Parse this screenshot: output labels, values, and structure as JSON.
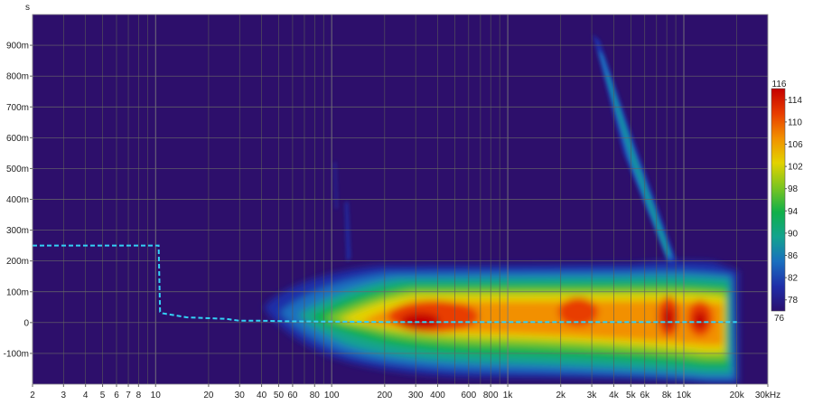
{
  "chart_data": {
    "type": "heatmap",
    "title": "",
    "y_unit_label": "s",
    "x_scale": "log",
    "xlim": [
      2,
      30000
    ],
    "ylim": [
      -0.2,
      1.0
    ],
    "x_ticks": [
      {
        "v": 2,
        "label": "2"
      },
      {
        "v": 3,
        "label": "3"
      },
      {
        "v": 4,
        "label": "4"
      },
      {
        "v": 5,
        "label": "5"
      },
      {
        "v": 6,
        "label": "6"
      },
      {
        "v": 7,
        "label": "7"
      },
      {
        "v": 8,
        "label": "8"
      },
      {
        "v": 10,
        "label": "10"
      },
      {
        "v": 20,
        "label": "20"
      },
      {
        "v": 30,
        "label": "30"
      },
      {
        "v": 40,
        "label": "40"
      },
      {
        "v": 50,
        "label": "50"
      },
      {
        "v": 60,
        "label": "60"
      },
      {
        "v": 80,
        "label": "80"
      },
      {
        "v": 100,
        "label": "100"
      },
      {
        "v": 200,
        "label": "200"
      },
      {
        "v": 300,
        "label": "300"
      },
      {
        "v": 400,
        "label": "400"
      },
      {
        "v": 600,
        "label": "600"
      },
      {
        "v": 800,
        "label": "800"
      },
      {
        "v": 1000,
        "label": "1k"
      },
      {
        "v": 2000,
        "label": "2k"
      },
      {
        "v": 3000,
        "label": "3k"
      },
      {
        "v": 4000,
        "label": "4k"
      },
      {
        "v": 5000,
        "label": "5k"
      },
      {
        "v": 6000,
        "label": "6k"
      },
      {
        "v": 8000,
        "label": "8k"
      },
      {
        "v": 10000,
        "label": "10k"
      },
      {
        "v": 20000,
        "label": "20k"
      },
      {
        "v": 30000,
        "label": "30kHz"
      }
    ],
    "y_ticks": [
      {
        "v": -0.1,
        "label": "-100m"
      },
      {
        "v": 0,
        "label": "0"
      },
      {
        "v": 0.1,
        "label": "100m"
      },
      {
        "v": 0.2,
        "label": "200m"
      },
      {
        "v": 0.3,
        "label": "300m"
      },
      {
        "v": 0.4,
        "label": "400m"
      },
      {
        "v": 0.5,
        "label": "500m"
      },
      {
        "v": 0.6,
        "label": "600m"
      },
      {
        "v": 0.7,
        "label": "700m"
      },
      {
        "v": 0.8,
        "label": "800m"
      },
      {
        "v": 0.9,
        "label": "900m"
      }
    ],
    "colorbar": {
      "min": 76,
      "max": 116,
      "labels": [
        "116",
        "114",
        "110",
        "106",
        "102",
        "98",
        "94",
        "90",
        "86",
        "82",
        "78",
        "76"
      ],
      "colors": [
        "#2a0f6e",
        "#1f2ea8",
        "#1a6fbf",
        "#13a38f",
        "#10b04a",
        "#7cc520",
        "#e3d200",
        "#f29000",
        "#e83c00",
        "#c40000"
      ]
    },
    "series": [
      {
        "type": "line",
        "style": "dashed",
        "color": "#33d1f5",
        "x": [
          2,
          10.4,
          10.6,
          11,
          15,
          25,
          30,
          40,
          60,
          100,
          200,
          1000,
          10000,
          20000
        ],
        "y": [
          0.25,
          0.25,
          0.035,
          0.03,
          0.017,
          0.012,
          0.006,
          0.006,
          0.004,
          0.003,
          0.002,
          0.002,
          0.002,
          0.002
        ]
      }
    ],
    "background_color": "#2d0f6b"
  }
}
